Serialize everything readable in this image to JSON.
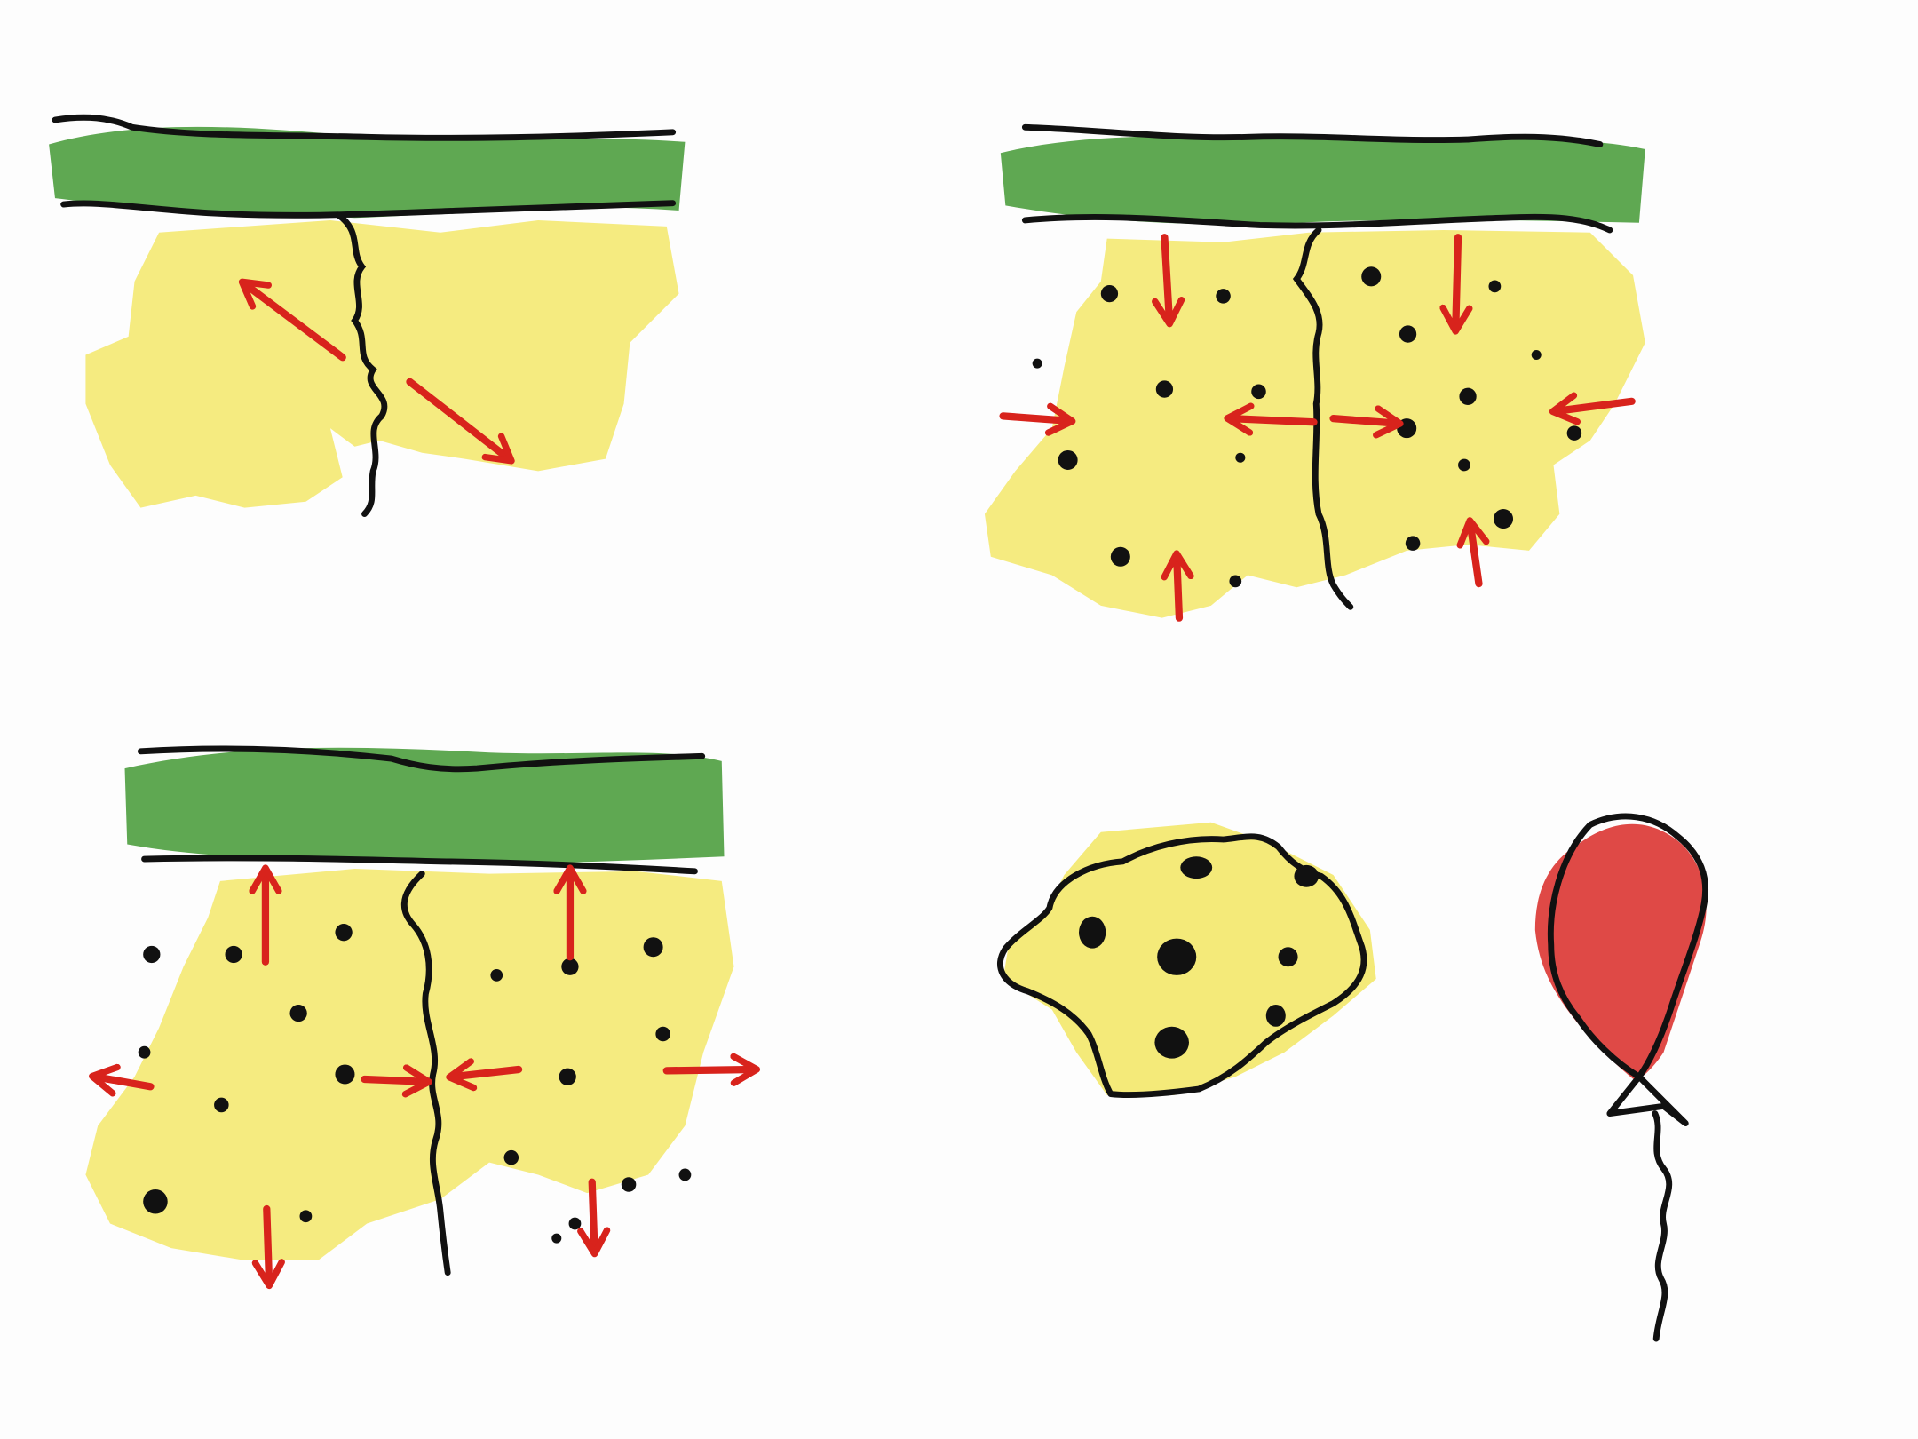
{
  "panels": [
    {
      "id": "panel-1",
      "particles": "none",
      "arrows": "outward-diagonal"
    },
    {
      "id": "panel-2",
      "particles": "scattered",
      "arrows": "inward"
    },
    {
      "id": "panel-3",
      "particles": "scattered",
      "arrows": "outward"
    },
    {
      "id": "panel-4",
      "items": [
        "dotted-yellow-blob",
        "red-balloon"
      ]
    }
  ],
  "colors": {
    "background": "#fdfdfd",
    "green_band": "#4e9e3f",
    "yellow_fill": "#f3e86a",
    "arrow_red": "#d8231c",
    "balloon_red": "#dc3a36",
    "ink": "#111111"
  }
}
